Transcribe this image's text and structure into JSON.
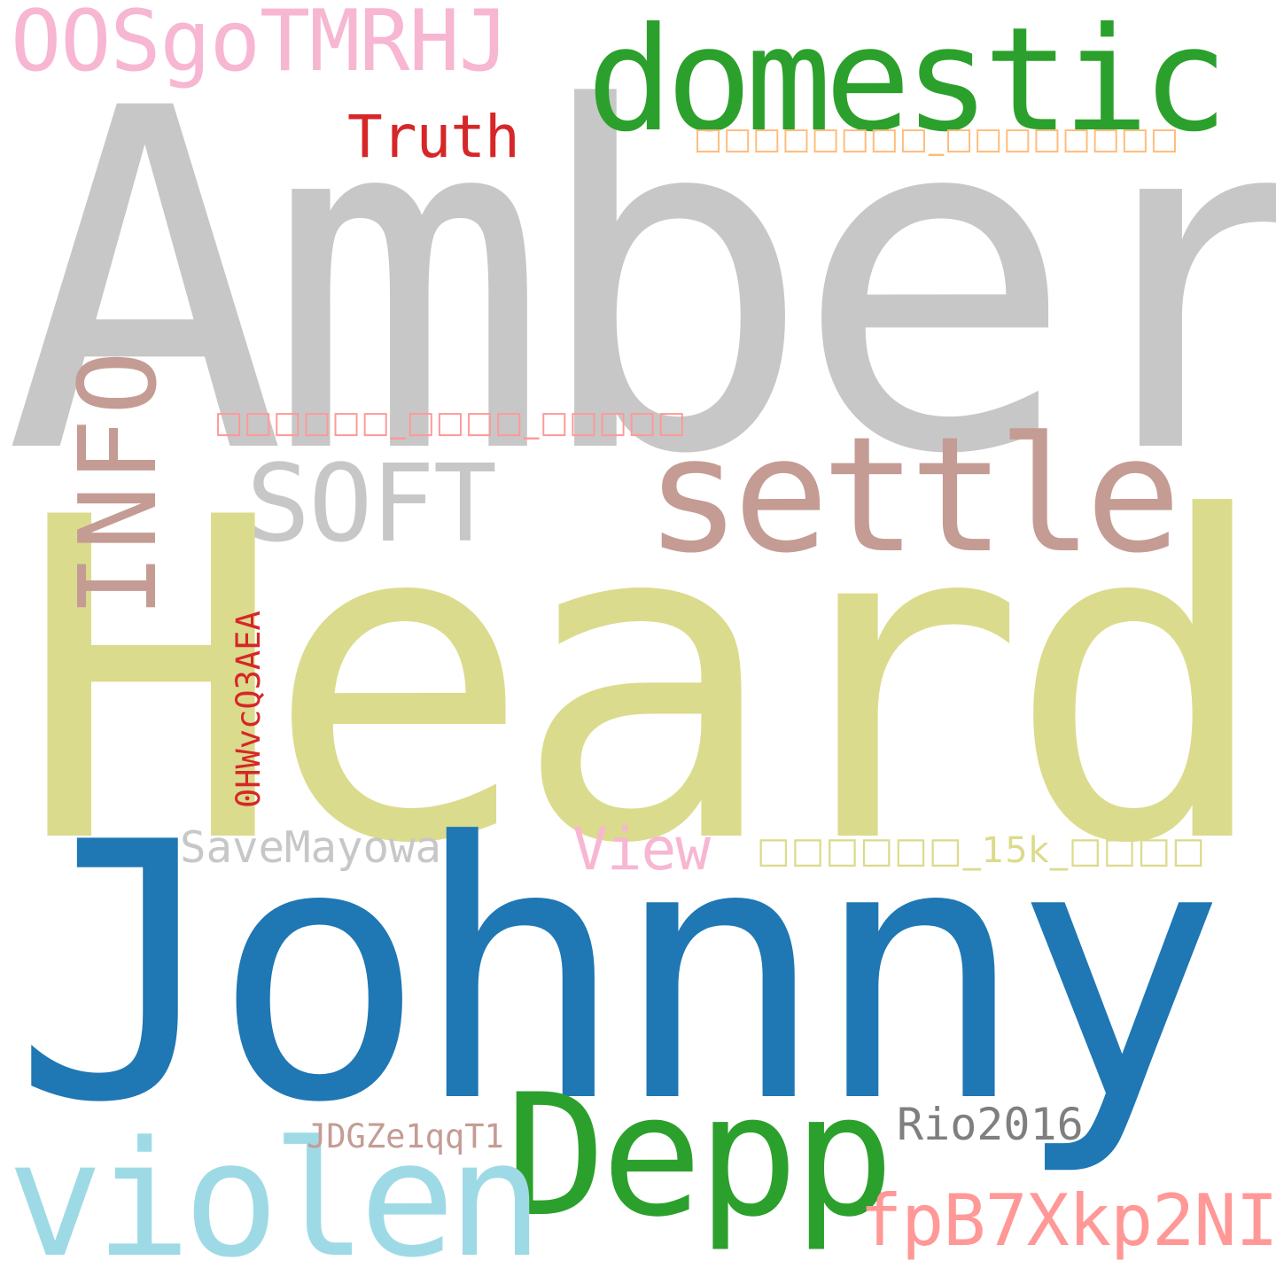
{
  "words": {
    "amber": {
      "text": "Amber",
      "color": "#c7c7c7"
    },
    "heard": {
      "text": "Heard",
      "color": "#dbdb8d"
    },
    "johnny": {
      "text": "Johnny",
      "color": "#1f77b4"
    },
    "domestic": {
      "text": "domestic",
      "color": "#2ca02c"
    },
    "depp": {
      "text": "Depp",
      "color": "#2ca02c"
    },
    "settle": {
      "text": "settle",
      "color": "#c49c94"
    },
    "violen": {
      "text": "violen",
      "color": "#9edae5"
    },
    "info": {
      "text": "INFO",
      "color": "#c49c94"
    },
    "soft": {
      "text": "SOFT",
      "color": "#c7c7c7"
    },
    "oosgo": {
      "text": "OOSgoTMRHJ",
      "color": "#f7b6d2"
    },
    "fpb7": {
      "text": "fpB7Xkp2NI",
      "color": "#ff9896"
    },
    "truth": {
      "text": "Truth",
      "color": "#d62728"
    },
    "view": {
      "text": "View",
      "color": "#f7b6d2"
    },
    "rio": {
      "text": "Rio2016",
      "color": "#7f7f7f"
    },
    "savemayowa": {
      "text": "SaveMayowa",
      "color": "#c7c7c7"
    },
    "jdgz": {
      "text": "JDGZe1qqT1",
      "color": "#c49c94"
    },
    "ohwv": {
      "text": "0HWvcQ3AEA",
      "color": "#d62728"
    },
    "boxes1": {
      "text": "□□□□□□□□_□□□□□□□□",
      "color": "#ffbb78"
    },
    "boxes2": {
      "text": "□□□□□□_□□□□_□□□□□",
      "color": "#ff9896"
    },
    "boxes3": {
      "text": "□□□□□□_15k_□□□□",
      "color": "#dbdb8d"
    }
  }
}
